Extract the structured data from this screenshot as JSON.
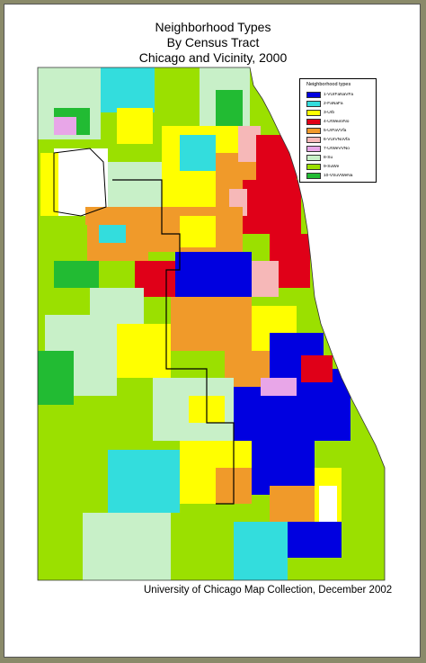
{
  "title": {
    "line1": "Neighborhood Types",
    "line2": "By Census Tract",
    "line3": "Chicago and Vicinity, 2000"
  },
  "legend": {
    "title": "Neighborhood types",
    "items": [
      {
        "label": "1-VUrFaNaVFa",
        "color": "#0000e0"
      },
      {
        "label": "2-FaNaFa",
        "color": "#33dddd"
      },
      {
        "label": "3-Urb",
        "color": "#ffff00"
      },
      {
        "label": "4-UrWeaVNo",
        "color": "#e00018"
      },
      {
        "label": "5-UrFaVVfa",
        "color": "#f09a2a"
      },
      {
        "label": "6-VUrVNoVfa",
        "color": "#f6b8b8"
      },
      {
        "label": "7-UrWeVVNo",
        "color": "#e8a6e8"
      },
      {
        "label": "8-Su",
        "color": "#c8f0c8"
      },
      {
        "label": "9-SuWe",
        "color": "#9be000"
      },
      {
        "label": "10-VSuVWeNa",
        "color": "#22bb33"
      }
    ]
  },
  "credit": "University of Chicago Map Collection, December 2002"
}
